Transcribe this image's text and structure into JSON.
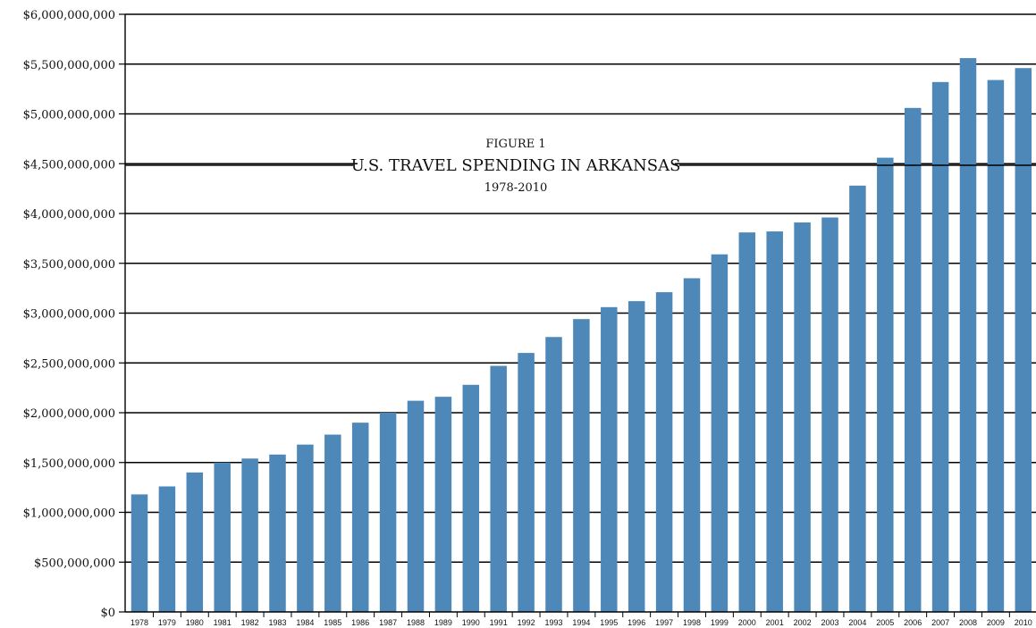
{
  "chart_data": {
    "type": "bar",
    "figure_label": "FIGURE 1",
    "title": "U.S. TRAVEL SPENDING IN ARKANSAS",
    "subtitle": "1978-2010",
    "xlabel": "",
    "ylabel": "",
    "ylim": [
      0,
      6000000000
    ],
    "grid": true,
    "yticks": [
      {
        "value": 0,
        "label": "$0"
      },
      {
        "value": 500000000,
        "label": "$500,000,000"
      },
      {
        "value": 1000000000,
        "label": "$1,000,000,000"
      },
      {
        "value": 1500000000,
        "label": "$1,500,000,000"
      },
      {
        "value": 2000000000,
        "label": "$2,000,000,000"
      },
      {
        "value": 2500000000,
        "label": "$2,500,000,000"
      },
      {
        "value": 3000000000,
        "label": "$3,000,000,000"
      },
      {
        "value": 3500000000,
        "label": "$3,500,000,000"
      },
      {
        "value": 4000000000,
        "label": "$4,000,000,000"
      },
      {
        "value": 4500000000,
        "label": "$4,500,000,000"
      },
      {
        "value": 5000000000,
        "label": "$5,000,000,000"
      },
      {
        "value": 5500000000,
        "label": "$5,500,000,000"
      },
      {
        "value": 6000000000,
        "label": "$6,000,000,000"
      }
    ],
    "categories": [
      "1978",
      "1979",
      "1980",
      "1981",
      "1982",
      "1983",
      "1984",
      "1985",
      "1986",
      "1987",
      "1988",
      "1989",
      "1990",
      "1991",
      "1992",
      "1993",
      "1994",
      "1995",
      "1996",
      "1997",
      "1998",
      "1999",
      "2000",
      "2001",
      "2002",
      "2003",
      "2004",
      "2005",
      "2006",
      "2007",
      "2008",
      "2009",
      "2010"
    ],
    "values": [
      1180000000,
      1260000000,
      1400000000,
      1500000000,
      1540000000,
      1580000000,
      1680000000,
      1780000000,
      1900000000,
      2000000000,
      2120000000,
      2160000000,
      2280000000,
      2470000000,
      2600000000,
      2760000000,
      2940000000,
      3060000000,
      3120000000,
      3210000000,
      3350000000,
      3590000000,
      3810000000,
      3820000000,
      3910000000,
      3960000000,
      4280000000,
      4560000000,
      5060000000,
      5320000000,
      5560000000,
      5340000000,
      5460000000
    ],
    "colors": {
      "bar": "#4d88b8",
      "grid": "#000000",
      "text": "#111111"
    }
  }
}
